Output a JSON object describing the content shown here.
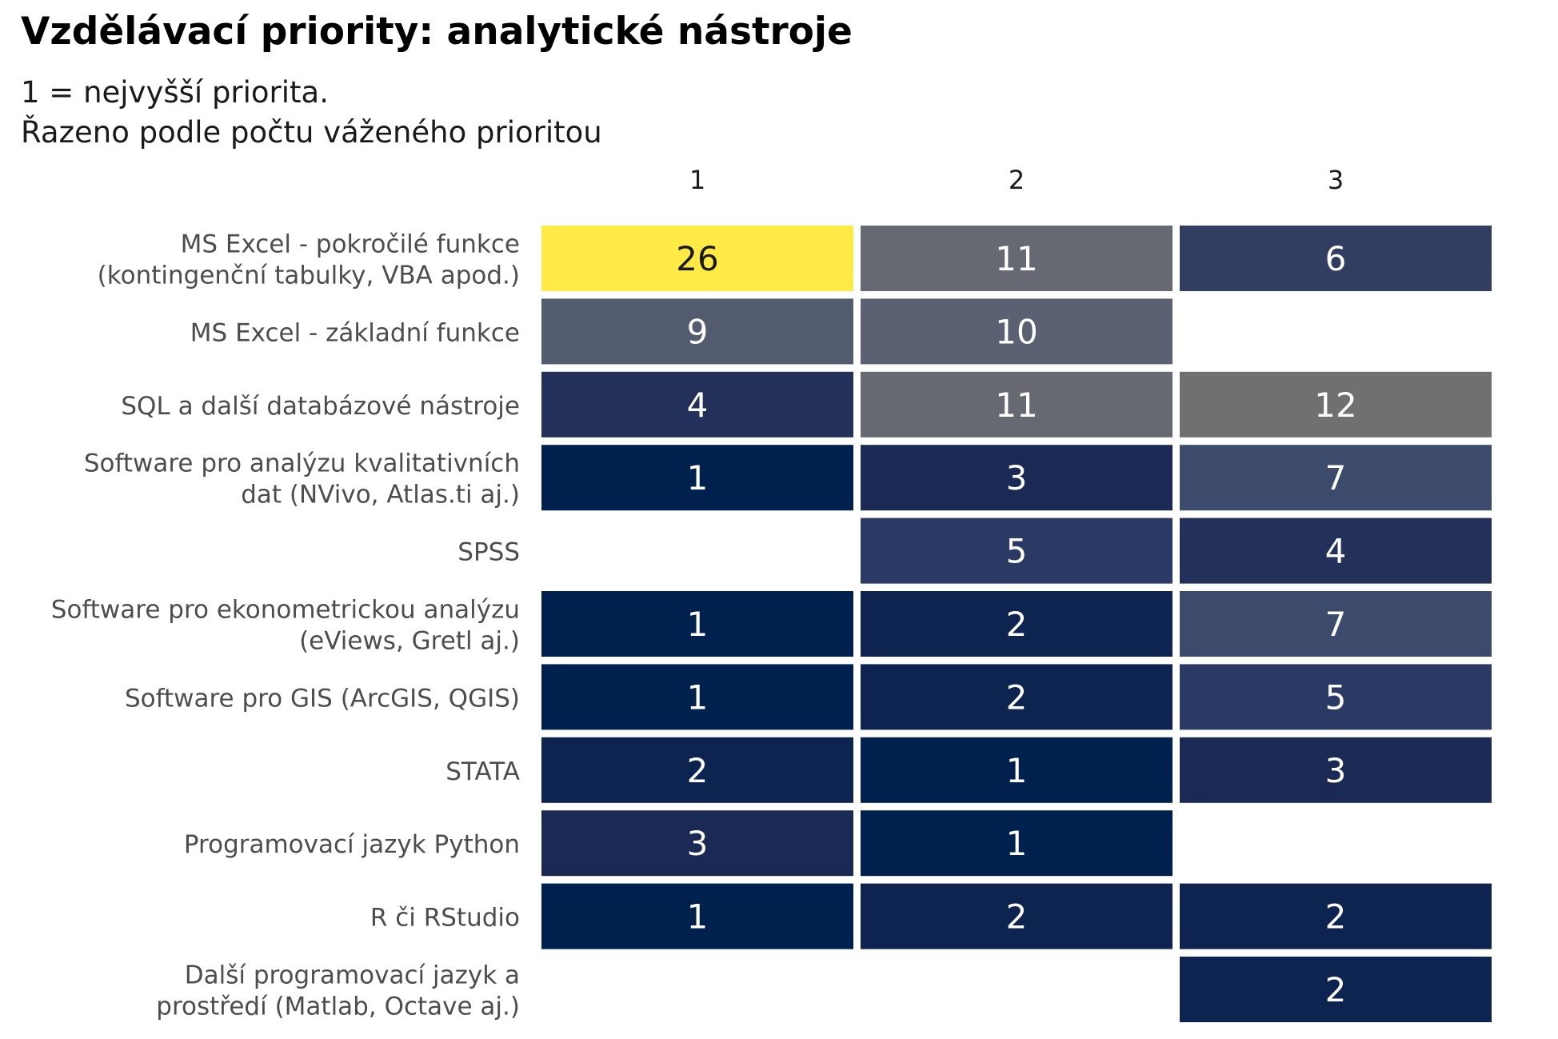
{
  "title": "Vzdělávací priority: analytické nástroje",
  "subtitle_lines": [
    "1 = nejvyšší priorita.",
    "Řazeno podle počtu váženého prioritou"
  ],
  "chart_data": {
    "type": "heatmap",
    "title": "Vzdělávací priority: analytické nástroje",
    "subtitle": "1 = nejvyšší priorita. Řazeno podle počtu váženého prioritou",
    "x_categories": [
      "1",
      "2",
      "3"
    ],
    "y_categories": [
      [
        "MS Excel - pokročilé funkce",
        "(kontingenční tabulky, VBA apod.)"
      ],
      [
        "MS Excel - základní funkce"
      ],
      [
        "SQL a další databázové nástroje"
      ],
      [
        "Software pro analýzu kvalitativních",
        "dat (NVivo, Atlas.ti aj.)"
      ],
      [
        "SPSS"
      ],
      [
        "Software pro ekonometrickou analýzu",
        "(eViews, Gretl aj.)"
      ],
      [
        "Software pro GIS (ArcGIS, QGIS)"
      ],
      [
        "STATA"
      ],
      [
        "Programovací jazyk Python"
      ],
      [
        "R či RStudio"
      ],
      [
        "Další programovací jazyk a",
        "prostředí (Matlab, Octave aj.)"
      ]
    ],
    "values": [
      [
        26,
        11,
        6
      ],
      [
        9,
        10,
        null
      ],
      [
        4,
        11,
        12
      ],
      [
        1,
        3,
        7
      ],
      [
        null,
        5,
        4
      ],
      [
        1,
        2,
        7
      ],
      [
        1,
        2,
        5
      ],
      [
        2,
        1,
        3
      ],
      [
        3,
        1,
        null
      ],
      [
        1,
        2,
        2
      ],
      [
        null,
        null,
        2
      ]
    ],
    "color_scale": {
      "low": "#00204d",
      "high": "#ffea46",
      "stops": {
        "1": "#00204d",
        "2": "#0d2350",
        "3": "#1b2a55",
        "4": "#23315a",
        "5": "#2b3a65",
        "6": "#313d61",
        "7": "#3c4a6b",
        "9": "#535b6e",
        "10": "#5b6172",
        "11": "#676972",
        "12": "#707070",
        "26": "#ffea46"
      }
    }
  }
}
